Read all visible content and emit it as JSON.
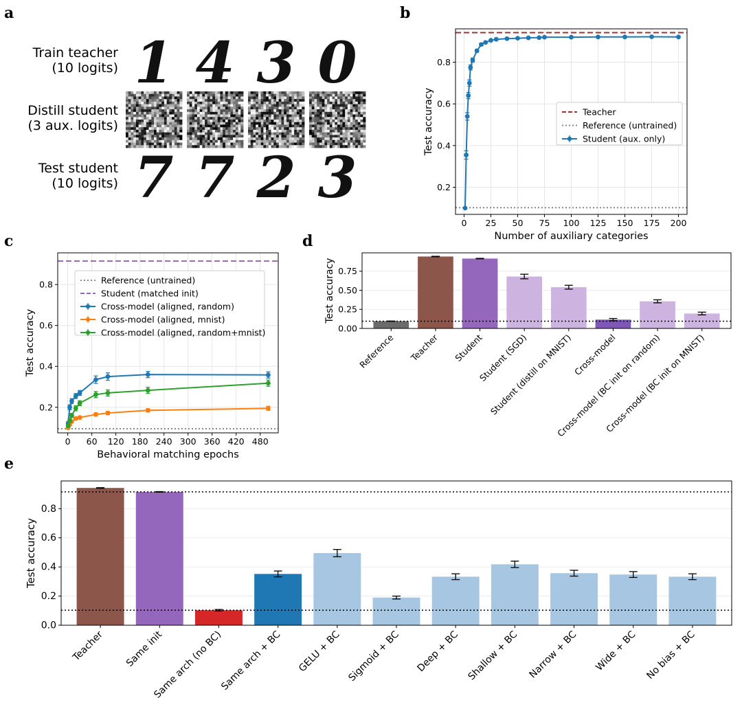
{
  "panels": {
    "a": "a",
    "b": "b",
    "c": "c",
    "d": "d",
    "e": "e"
  },
  "panel_a": {
    "rows": [
      {
        "line1": "Train teacher",
        "line2": "(10 logits)",
        "kind": "digits",
        "digits": [
          "1",
          "4",
          "3",
          "0"
        ]
      },
      {
        "line1": "Distill student",
        "line2": "(3 aux. logits)",
        "kind": "noise",
        "digits": []
      },
      {
        "line1": "Test student",
        "line2": "(10 logits)",
        "kind": "digits",
        "digits": [
          "7",
          "7",
          "2",
          "3"
        ]
      }
    ]
  },
  "chart_data": [
    {
      "id": "b",
      "type": "line",
      "xlabel": "Number of auxiliary categories",
      "ylabel": "Test accuracy",
      "xlim": [
        -8,
        208
      ],
      "ylim": [
        0.07,
        0.96
      ],
      "xticks": [
        0,
        25,
        50,
        75,
        100,
        125,
        150,
        175,
        200
      ],
      "yticks": [
        0.2,
        0.4,
        0.6,
        0.8
      ],
      "grid": true,
      "legend_position": "center-right",
      "hlines": [
        {
          "name": "Teacher",
          "y": 0.942,
          "color": "#a0302e",
          "style": "dashed"
        },
        {
          "name": "Reference (untrained)",
          "y": 0.102,
          "color": "#888888",
          "style": "dotted"
        }
      ],
      "series": [
        {
          "name": "Student (aux. only)",
          "color": "#1f77b4",
          "x": [
            1,
            2,
            3,
            4,
            5,
            6,
            8,
            12,
            16,
            20,
            25,
            30,
            40,
            50,
            60,
            70,
            75,
            100,
            125,
            150,
            175,
            200
          ],
          "y": [
            0.1,
            0.355,
            0.54,
            0.64,
            0.7,
            0.775,
            0.81,
            0.855,
            0.885,
            0.895,
            0.905,
            0.91,
            0.913,
            0.915,
            0.917,
            0.918,
            0.92,
            0.92,
            0.921,
            0.921,
            0.922,
            0.921
          ],
          "err": [
            0.003,
            0.02,
            0.018,
            0.015,
            0.015,
            0.012,
            0.01,
            0.007,
            0.006,
            0.005,
            0.004,
            0.004,
            0.004,
            0.003,
            0.003,
            0.003,
            0.003,
            0.003,
            0.003,
            0.003,
            0.003,
            0.003
          ]
        }
      ]
    },
    {
      "id": "c",
      "type": "line",
      "xlabel": "Behavioral matching epochs",
      "ylabel": "Test accuracy",
      "xlim": [
        -25,
        525
      ],
      "ylim": [
        0.075,
        0.955
      ],
      "xticks": [
        0,
        60,
        120,
        180,
        240,
        300,
        360,
        420,
        480
      ],
      "yticks": [
        0.2,
        0.4,
        0.6,
        0.8
      ],
      "grid": true,
      "legend_position": "top",
      "hlines": [
        {
          "name": "Reference (untrained)",
          "y": 0.095,
          "color": "#888888",
          "style": "dotted"
        },
        {
          "name": "Student (matched init)",
          "y": 0.915,
          "color": "#9467bd",
          "style": "dashed"
        }
      ],
      "series": [
        {
          "name": "Cross-model (aligned, random)",
          "color": "#1f77b4",
          "x": [
            1,
            5,
            10,
            20,
            30,
            70,
            100,
            200,
            500
          ],
          "y": [
            0.12,
            0.2,
            0.23,
            0.255,
            0.27,
            0.335,
            0.35,
            0.36,
            0.358
          ],
          "err": [
            0.01,
            0.012,
            0.012,
            0.012,
            0.012,
            0.018,
            0.018,
            0.015,
            0.015
          ]
        },
        {
          "name": "Cross-model (aligned, mnist)",
          "color": "#ff7f0e",
          "x": [
            1,
            5,
            10,
            20,
            30,
            70,
            100,
            200,
            500
          ],
          "y": [
            0.1,
            0.115,
            0.13,
            0.145,
            0.15,
            0.165,
            0.172,
            0.185,
            0.195
          ],
          "err": [
            0.005,
            0.006,
            0.006,
            0.007,
            0.007,
            0.008,
            0.008,
            0.008,
            0.01
          ]
        },
        {
          "name": "Cross-model (aligned, random+mnist)",
          "color": "#2ca02c",
          "x": [
            1,
            5,
            10,
            20,
            30,
            70,
            100,
            200,
            500
          ],
          "y": [
            0.11,
            0.135,
            0.16,
            0.195,
            0.22,
            0.262,
            0.27,
            0.283,
            0.318
          ],
          "err": [
            0.008,
            0.01,
            0.01,
            0.012,
            0.012,
            0.015,
            0.015,
            0.015,
            0.015
          ]
        }
      ]
    },
    {
      "id": "d",
      "type": "bar",
      "ylabel": "Test accuracy",
      "ylim": [
        0,
        0.99
      ],
      "yticks": [
        0.0,
        0.25,
        0.5,
        0.75
      ],
      "ytick_labels": [
        "0.00",
        "0.25",
        "0.50",
        "0.75"
      ],
      "reference_line": 0.095,
      "categories": [
        "Reference",
        "Teacher",
        "Student",
        "Student (SGD)",
        "Student (distill on MNIST)",
        "Cross-model",
        "Cross-model (BC init on random)",
        "Cross-model (BC init on MNIST)"
      ],
      "values": [
        0.095,
        0.942,
        0.915,
        0.68,
        0.54,
        0.115,
        0.355,
        0.195
      ],
      "errors": [
        0.002,
        0.003,
        0.003,
        0.03,
        0.025,
        0.015,
        0.02,
        0.018
      ],
      "colors": [
        "#6b6b6b",
        "#8c564b",
        "#9467bd",
        "#cdb3e0",
        "#cdb3e0",
        "#7e57b8",
        "#cdb3e0",
        "#cdb3e0"
      ]
    },
    {
      "id": "e",
      "type": "bar",
      "ylabel": "Test accuracy",
      "ylim": [
        0,
        0.99
      ],
      "yticks": [
        0.0,
        0.2,
        0.4,
        0.6,
        0.8
      ],
      "ytick_labels": [
        "0.0",
        "0.2",
        "0.4",
        "0.6",
        "0.8"
      ],
      "reference_lines": [
        0.915,
        0.103
      ],
      "categories": [
        "Teacher",
        "Same init",
        "Same arch (no BC)",
        "Same arch + BC",
        "GELU + BC",
        "Sigmoid + BC",
        "Deep + BC",
        "Shallow + BC",
        "Narrow + BC",
        "Wide + BC",
        "No bias + BC"
      ],
      "values": [
        0.942,
        0.915,
        0.103,
        0.352,
        0.495,
        0.19,
        0.333,
        0.418,
        0.357,
        0.348,
        0.333
      ],
      "errors": [
        0.002,
        0.002,
        0.005,
        0.02,
        0.025,
        0.01,
        0.02,
        0.022,
        0.02,
        0.02,
        0.02
      ],
      "colors": [
        "#8c564b",
        "#9467bd",
        "#d62728",
        "#1f77b4",
        "#a6c6e2",
        "#a6c6e2",
        "#a6c6e2",
        "#a6c6e2",
        "#a6c6e2",
        "#a6c6e2",
        "#a6c6e2"
      ]
    }
  ]
}
